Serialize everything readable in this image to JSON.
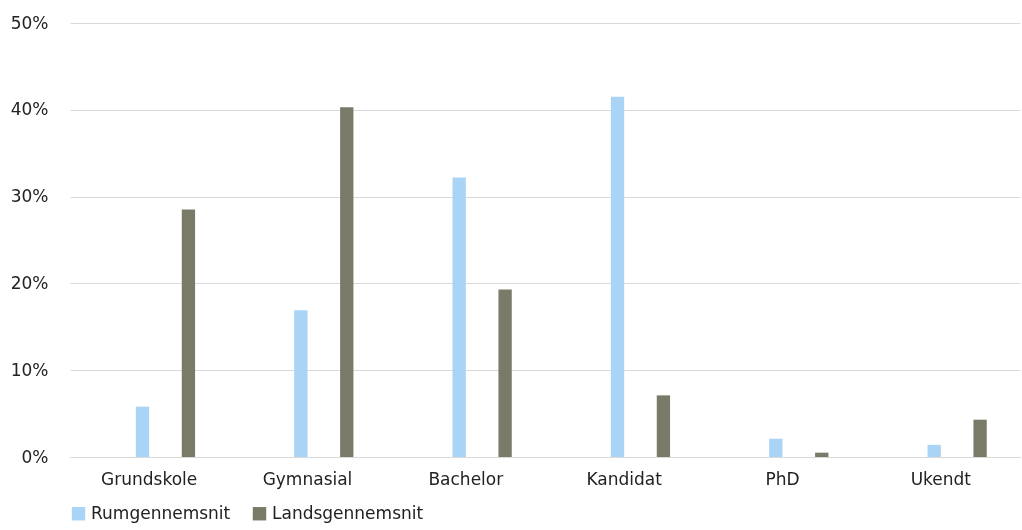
{
  "chart_data": {
    "type": "bar",
    "categories": [
      "Grundskole",
      "Gymnasial",
      "Bachelor",
      "Kandidat",
      "PhD",
      "Ukendt"
    ],
    "series": [
      {
        "name": "Rumgennemsnit",
        "color": "#a9d4f5",
        "values": [
          5.8,
          16.9,
          32.2,
          41.5,
          2.1,
          1.4
        ]
      },
      {
        "name": "Landsgennemsnit",
        "color": "#7a7a68",
        "values": [
          28.5,
          40.3,
          19.3,
          7.1,
          0.5,
          4.3
        ]
      }
    ],
    "ylim": [
      0,
      50
    ],
    "yticks": [
      {
        "value": 0,
        "label": "0%"
      },
      {
        "value": 10,
        "label": "10%"
      },
      {
        "value": 20,
        "label": "20%"
      },
      {
        "value": 30,
        "label": "30%"
      },
      {
        "value": 40,
        "label": "40%"
      },
      {
        "value": 50,
        "label": "50%"
      }
    ],
    "grid": "y",
    "legend": "bottom"
  }
}
